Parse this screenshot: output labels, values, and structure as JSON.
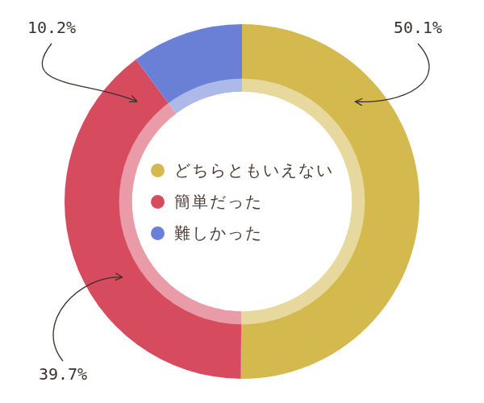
{
  "chart_data": {
    "type": "doughnut",
    "categories": [
      "どちらともいえない",
      "簡単だった",
      "難しかった"
    ],
    "values": [
      50.1,
      39.7,
      10.2
    ],
    "value_labels": [
      "50.1%",
      "39.7%",
      "10.2%"
    ],
    "colors": [
      "#d4b94f",
      "#d74b5f",
      "#6a80d6"
    ],
    "data_labels": true,
    "legend": "center"
  }
}
